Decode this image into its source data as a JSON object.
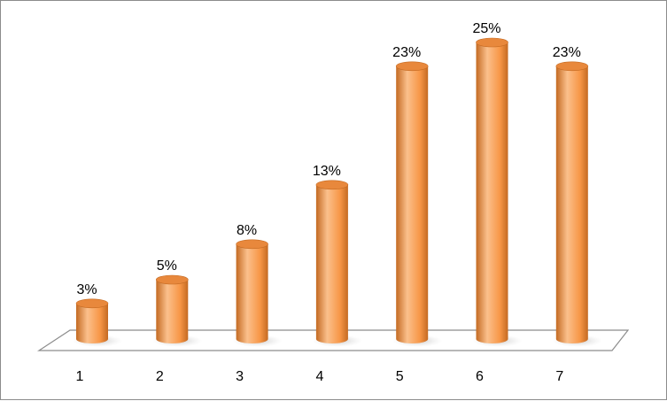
{
  "chart_data": {
    "type": "bar",
    "style": "3d-cylinder",
    "categories": [
      "1",
      "2",
      "3",
      "4",
      "5",
      "6",
      "7"
    ],
    "values": [
      3,
      5,
      8,
      13,
      23,
      25,
      23
    ],
    "data_labels": [
      "3%",
      "5%",
      "8%",
      "13%",
      "23%",
      "25%",
      "23%"
    ],
    "ylim": [
      0,
      25
    ],
    "grid": false,
    "legend": "none",
    "colors": {
      "bar_fill": "#f79646",
      "bar_highlight": "#fbc08c",
      "bar_shadow": "#c46a22",
      "bar_top": "#e8883c",
      "floor_stroke": "#8c8c8c"
    }
  }
}
